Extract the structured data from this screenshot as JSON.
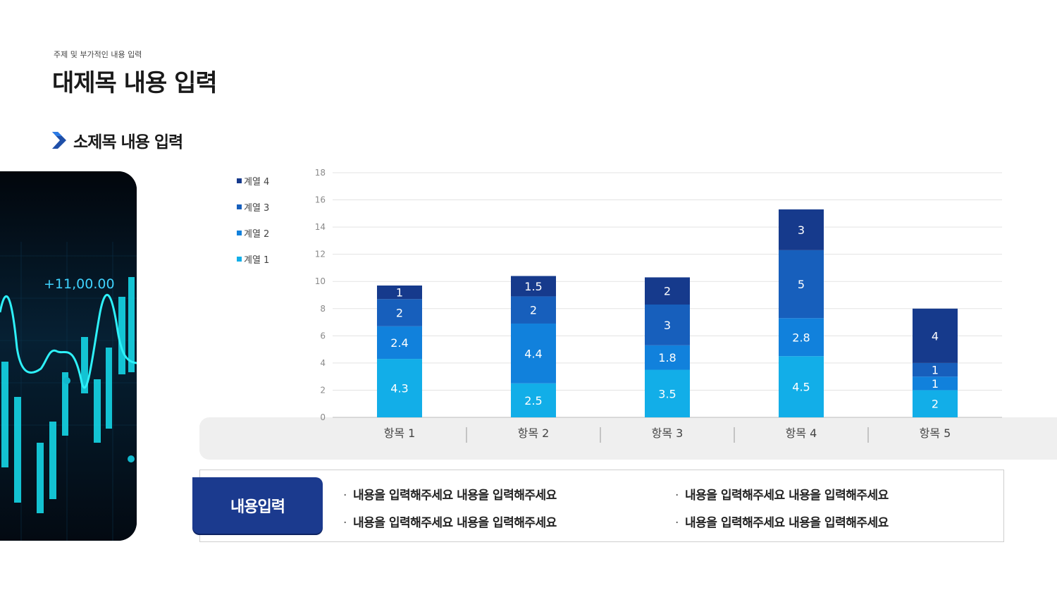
{
  "header": {
    "subtitle": "주제 및 부가적인 내용 입력",
    "title": "대제목 내용 입력"
  },
  "section": {
    "title": "소제목 내용 입력"
  },
  "photo": {
    "overlay_text": "+11,00.00",
    "accent": "#16e0e8"
  },
  "chart_data": {
    "type": "bar",
    "stacked": true,
    "categories": [
      "항목 1",
      "항목 2",
      "항목 3",
      "항목 4",
      "항목 5"
    ],
    "series": [
      {
        "name": "계열 1",
        "values": [
          4.3,
          2.5,
          3.5,
          4.5,
          2
        ],
        "color": "#12aee8"
      },
      {
        "name": "계열 2",
        "values": [
          2.4,
          4.4,
          1.8,
          2.8,
          1
        ],
        "color": "#1181dc"
      },
      {
        "name": "계열 3",
        "values": [
          2,
          2,
          3,
          5,
          1
        ],
        "color": "#175fbc"
      },
      {
        "name": "계열 4",
        "values": [
          1,
          1.5,
          2,
          3,
          4
        ],
        "color": "#163a8c"
      }
    ],
    "yticks": [
      "0",
      "2",
      "4",
      "6",
      "8",
      "10",
      "12",
      "14",
      "16",
      "18"
    ],
    "ylim": [
      0,
      18
    ],
    "grid": true,
    "legend_position": "left"
  },
  "info": {
    "label": "내용입력",
    "bullets": [
      "내용을 입력해주세요 내용을 입력해주세요",
      "내용을 입력해주세요 내용을 입력해주세요",
      "내용을 입력해주세요 내용을 입력해주세요",
      "내용을 입력해주세요 내용을 입력해주세요"
    ]
  }
}
